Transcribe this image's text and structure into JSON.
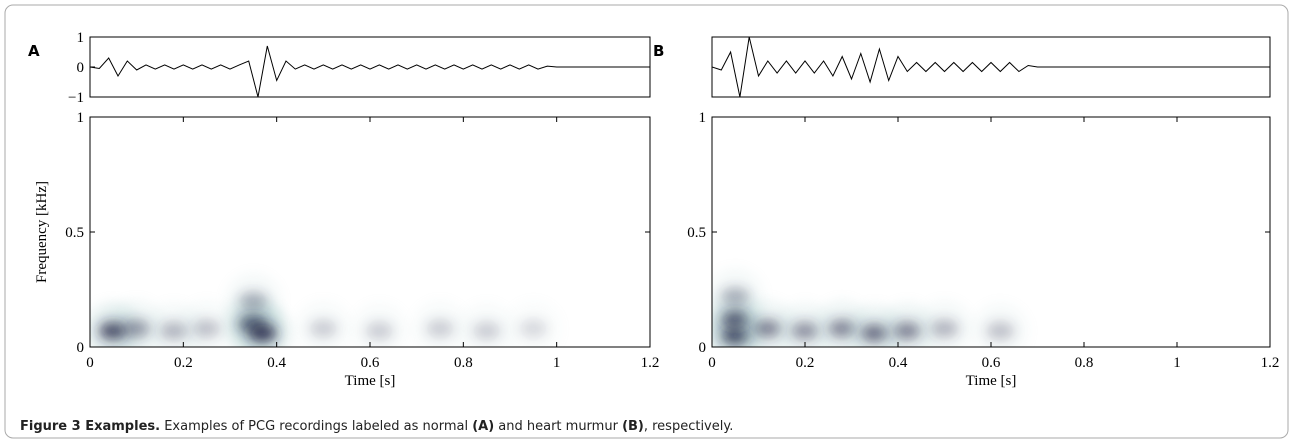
{
  "chart_data": [
    {
      "type": "line",
      "panel": "A",
      "color": "#000000",
      "x": [
        0,
        0.02,
        0.04,
        0.06,
        0.08,
        0.1,
        0.12,
        0.14,
        0.16,
        0.18,
        0.2,
        0.22,
        0.24,
        0.26,
        0.28,
        0.3,
        0.32,
        0.34,
        0.36,
        0.38,
        0.4,
        0.42,
        0.44,
        0.46,
        0.48,
        0.5,
        0.52,
        0.54,
        0.56,
        0.58,
        0.6,
        0.62,
        0.64,
        0.66,
        0.68,
        0.7,
        0.72,
        0.74,
        0.76,
        0.78,
        0.8,
        0.82,
        0.84,
        0.86,
        0.88,
        0.9,
        0.92,
        0.94,
        0.96,
        0.98,
        1.0,
        1.2
      ],
      "values": [
        0,
        -0.05,
        0.3,
        -0.3,
        0.2,
        -0.1,
        0.07,
        -0.07,
        0.07,
        -0.07,
        0.07,
        -0.07,
        0.07,
        -0.07,
        0.07,
        -0.07,
        0.07,
        0.2,
        -1,
        0.7,
        -0.45,
        0.2,
        -0.07,
        0.07,
        -0.07,
        0.07,
        -0.07,
        0.07,
        -0.07,
        0.07,
        -0.07,
        0.07,
        -0.07,
        0.07,
        -0.07,
        0.07,
        -0.07,
        0.07,
        -0.07,
        0.07,
        -0.07,
        0.07,
        -0.07,
        0.07,
        -0.07,
        0.07,
        -0.07,
        0.07,
        -0.07,
        0.03,
        0,
        0
      ],
      "xlim": [
        0,
        1.2
      ],
      "ylim": [
        -1,
        1
      ],
      "yticks": [
        {
          "value": -1,
          "label": "−1"
        },
        0,
        1
      ]
    },
    {
      "type": "heatmap",
      "color": "#1c1c3c",
      "xlabel": "Time [s]",
      "ylabel": "Frequency [kHz]",
      "x": [
        0.05,
        0.1,
        0.18,
        0.25,
        0.35,
        0.37,
        0.35,
        0.5,
        0.62,
        0.75,
        0.85,
        0.95
      ],
      "y": [
        0.07,
        0.08,
        0.07,
        0.08,
        0.1,
        0.06,
        0.2,
        0.08,
        0.07,
        0.08,
        0.07,
        0.08
      ],
      "intensity": [
        0.8,
        0.4,
        0.3,
        0.25,
        0.9,
        0.8,
        0.3,
        0.2,
        0.2,
        0.2,
        0.2,
        0.15
      ],
      "xlim": [
        0,
        1.2
      ],
      "ylim": [
        0,
        1
      ],
      "xticks": [
        0,
        0.2,
        0.4,
        0.6,
        0.8,
        1,
        1.2
      ],
      "yticks": [
        0,
        0.5,
        1
      ]
    },
    {
      "type": "line",
      "panel": "B",
      "color": "#000000",
      "x": [
        0,
        0.02,
        0.04,
        0.06,
        0.08,
        0.1,
        0.12,
        0.14,
        0.16,
        0.18,
        0.2,
        0.22,
        0.24,
        0.26,
        0.28,
        0.3,
        0.32,
        0.34,
        0.36,
        0.38,
        0.4,
        0.42,
        0.44,
        0.46,
        0.48,
        0.5,
        0.52,
        0.54,
        0.56,
        0.58,
        0.6,
        0.62,
        0.64,
        0.66,
        0.68,
        0.7,
        1.2
      ],
      "values": [
        0,
        -0.1,
        0.5,
        -1,
        1,
        -0.3,
        0.2,
        -0.2,
        0.2,
        -0.2,
        0.2,
        -0.2,
        0.2,
        -0.3,
        0.35,
        -0.4,
        0.45,
        -0.5,
        0.6,
        -0.45,
        0.35,
        -0.15,
        0.15,
        -0.15,
        0.15,
        -0.15,
        0.15,
        -0.15,
        0.15,
        -0.15,
        0.15,
        -0.15,
        0.15,
        -0.15,
        0.05,
        0,
        0
      ],
      "xlim": [
        0,
        1.2
      ],
      "ylim": [
        -1,
        1
      ]
    },
    {
      "type": "heatmap",
      "color": "#1c1c3c",
      "xlabel": "Time [s]",
      "x": [
        0.05,
        0.05,
        0.05,
        0.12,
        0.2,
        0.28,
        0.35,
        0.42,
        0.5,
        0.62
      ],
      "y": [
        0.05,
        0.12,
        0.22,
        0.08,
        0.07,
        0.08,
        0.06,
        0.07,
        0.08,
        0.07
      ],
      "intensity": [
        0.9,
        0.7,
        0.3,
        0.5,
        0.45,
        0.5,
        0.6,
        0.5,
        0.3,
        0.25
      ],
      "xlim": [
        0,
        1.2
      ],
      "ylim": [
        0,
        1
      ],
      "xticks": [
        0,
        0.2,
        0.4,
        0.6,
        0.8,
        1,
        1.2
      ],
      "yticks": [
        0,
        0.5,
        1
      ]
    }
  ],
  "caption": {
    "title": "Figure 3 Examples.",
    "text_1": " Examples of PCG recordings labeled as normal ",
    "bold_1": "(A)",
    "text_2": " and heart murmur ",
    "bold_2": "(B)",
    "text_3": ", respectively."
  }
}
